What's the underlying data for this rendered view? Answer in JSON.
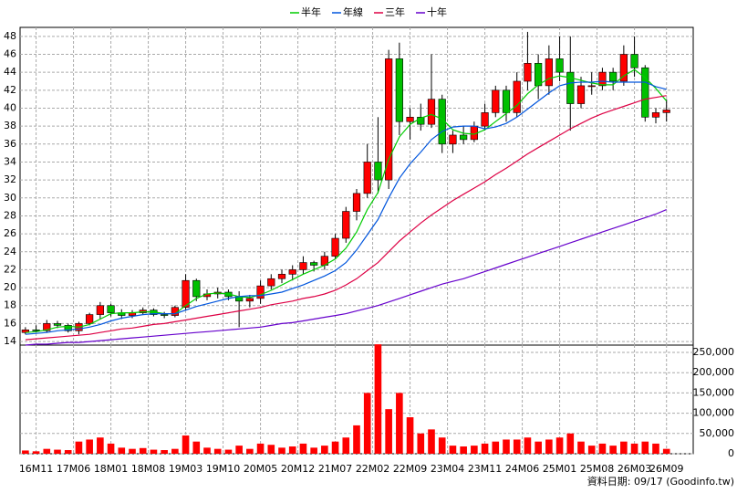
{
  "chart_data": {
    "type": "candlestick",
    "legend": "top",
    "grid": true,
    "up_color": "#ff0000",
    "down_color": "#00c000",
    "volume_color": "#ff0000",
    "footer": "資料日期: 09/17 (Goodinfo.tw)",
    "xlim": [
      -3,
      123
    ],
    "xticks": [
      {
        "value": 0,
        "label": "16M11"
      },
      {
        "value": 7,
        "label": "17M06"
      },
      {
        "value": 14,
        "label": "18M01"
      },
      {
        "value": 21,
        "label": "18M08"
      },
      {
        "value": 28,
        "label": "19M03"
      },
      {
        "value": 35,
        "label": "19M10"
      },
      {
        "value": 42,
        "label": "20M05"
      },
      {
        "value": 49,
        "label": "20M12"
      },
      {
        "value": 56,
        "label": "21M07"
      },
      {
        "value": 63,
        "label": "22M02"
      },
      {
        "value": 70,
        "label": "22M09"
      },
      {
        "value": 77,
        "label": "23M04"
      },
      {
        "value": 84,
        "label": "23M11"
      },
      {
        "value": 91,
        "label": "24M06"
      },
      {
        "value": 98,
        "label": "25M01"
      },
      {
        "value": 105,
        "label": "25M08"
      },
      {
        "value": 112,
        "label": "26M03"
      },
      {
        "value": 118,
        "label": "26M09"
      }
    ],
    "ylim": [
      13.6,
      49
    ],
    "yticks": [
      14,
      16,
      18,
      20,
      22,
      24,
      26,
      28,
      30,
      32,
      34,
      36,
      38,
      40,
      42,
      44,
      46,
      48
    ],
    "volume_ylim": [
      0,
      268000
    ],
    "volume_yticks": [
      0,
      {
        "value": 50000,
        "label": "50,000"
      },
      {
        "value": 100000,
        "label": "100,000"
      },
      {
        "value": 150000,
        "label": "150,000"
      },
      {
        "value": 200000,
        "label": "200,000"
      },
      {
        "value": 250000,
        "label": "250,000"
      }
    ],
    "x": [
      -2,
      0,
      2,
      4,
      6,
      8,
      10,
      12,
      14,
      16,
      18,
      20,
      22,
      24,
      26,
      28,
      30,
      32,
      34,
      36,
      38,
      40,
      42,
      44,
      46,
      48,
      50,
      52,
      54,
      56,
      58,
      60,
      62,
      64,
      66,
      68,
      70,
      72,
      74,
      76,
      78,
      80,
      82,
      84,
      86,
      88,
      90,
      92,
      94,
      96,
      98,
      100,
      102,
      104,
      106,
      108,
      110,
      112,
      114,
      116,
      118
    ],
    "open": [
      15.0,
      15.3,
      15.2,
      16.0,
      15.8,
      15.2,
      16.0,
      17.0,
      18.0,
      17.2,
      16.9,
      17.2,
      17.5,
      17.0,
      16.9,
      17.8,
      20.8,
      19.0,
      19.3,
      19.5,
      19.0,
      18.5,
      18.8,
      20.2,
      21.0,
      21.5,
      22.0,
      22.8,
      22.5,
      23.5,
      25.5,
      28.5,
      30.5,
      34.0,
      32.0,
      45.5,
      38.5,
      39.0,
      38.2,
      41.0,
      36.0,
      37.0,
      36.5,
      38.0,
      39.5,
      42.0,
      39.5,
      43.0,
      45.0,
      42.5,
      45.5,
      44.0,
      40.5,
      42.5,
      42.5,
      44.0,
      43.0,
      46.0,
      44.5,
      39.0,
      39.5
    ],
    "high": [
      15.6,
      15.8,
      16.4,
      16.3,
      16.0,
      16.2,
      17.2,
      18.4,
      18.2,
      17.6,
      17.5,
      17.8,
      17.7,
      17.3,
      18.0,
      21.5,
      21.0,
      19.8,
      20.0,
      19.8,
      19.6,
      19.2,
      20.8,
      21.5,
      22.0,
      22.5,
      23.5,
      23.0,
      24.0,
      26.0,
      29.0,
      31.0,
      36.0,
      39.0,
      46.5,
      47.3,
      40.0,
      40.5,
      46.0,
      41.5,
      37.5,
      38.0,
      38.5,
      40.5,
      42.5,
      42.5,
      44.0,
      48.5,
      46.0,
      47.0,
      48.0,
      48.0,
      43.5,
      44.0,
      44.5,
      44.5,
      47.0,
      48.0,
      44.8,
      40.0,
      41.0
    ],
    "low": [
      14.8,
      15.0,
      15.0,
      15.5,
      15.0,
      14.8,
      15.8,
      16.5,
      16.8,
      16.5,
      16.6,
      17.0,
      16.8,
      16.6,
      16.7,
      17.5,
      18.5,
      18.6,
      18.8,
      18.6,
      15.6,
      17.8,
      18.2,
      19.8,
      20.5,
      20.8,
      21.5,
      21.8,
      22.0,
      23.2,
      25.0,
      27.5,
      30.0,
      30.5,
      31.0,
      37.0,
      36.5,
      37.5,
      37.8,
      35.0,
      35.0,
      36.0,
      36.2,
      37.5,
      39.0,
      38.5,
      39.0,
      42.0,
      41.0,
      41.5,
      43.0,
      37.5,
      40.0,
      41.5,
      42.0,
      42.0,
      42.5,
      43.5,
      38.5,
      38.3,
      38.5
    ],
    "close": [
      15.3,
      15.2,
      16.0,
      15.8,
      15.2,
      16.0,
      17.0,
      18.0,
      17.2,
      16.9,
      17.2,
      17.5,
      17.0,
      16.9,
      17.8,
      20.8,
      19.0,
      19.3,
      19.5,
      19.0,
      18.5,
      18.8,
      20.2,
      21.0,
      21.5,
      22.0,
      22.8,
      22.5,
      23.5,
      25.5,
      28.5,
      30.5,
      34.0,
      32.0,
      45.5,
      38.5,
      39.0,
      38.2,
      41.0,
      36.0,
      37.0,
      36.5,
      38.0,
      39.5,
      42.0,
      39.5,
      43.0,
      45.0,
      42.5,
      45.5,
      44.0,
      40.5,
      42.5,
      42.5,
      44.0,
      43.0,
      46.0,
      44.5,
      39.0,
      39.5,
      39.8
    ],
    "volume": [
      8000,
      6000,
      12000,
      10000,
      9000,
      30000,
      35000,
      40000,
      25000,
      15000,
      12000,
      14000,
      10000,
      9000,
      12000,
      45000,
      30000,
      15000,
      12000,
      10000,
      20000,
      12000,
      25000,
      22000,
      15000,
      18000,
      25000,
      15000,
      20000,
      30000,
      40000,
      70000,
      150000,
      270000,
      110000,
      150000,
      90000,
      50000,
      60000,
      40000,
      20000,
      18000,
      20000,
      25000,
      30000,
      35000,
      35000,
      40000,
      30000,
      35000,
      40000,
      50000,
      30000,
      20000,
      25000,
      20000,
      30000,
      25000,
      30000,
      25000,
      12000
    ],
    "series": [
      {
        "name": "半年",
        "color": "#00cc00",
        "values": [
          15.0,
          15.1,
          15.3,
          15.6,
          15.7,
          15.6,
          15.9,
          16.5,
          17.1,
          17.2,
          17.2,
          17.3,
          17.3,
          17.1,
          17.1,
          18.0,
          18.8,
          19.3,
          19.4,
          19.3,
          19.0,
          18.9,
          19.2,
          19.7,
          20.3,
          20.9,
          21.5,
          22.0,
          22.5,
          23.2,
          24.4,
          26.2,
          28.7,
          30.6,
          34.3,
          36.8,
          38.2,
          38.9,
          39.3,
          38.8,
          37.6,
          37.2,
          37.1,
          37.6,
          38.5,
          39.4,
          40.3,
          41.6,
          42.6,
          43.3,
          43.6,
          43.4,
          43.1,
          42.8,
          42.6,
          42.6,
          43.6,
          44.3,
          43.4,
          42.2,
          40.8
        ]
      },
      {
        "name": "年線",
        "color": "#0055dd",
        "values": [
          14.8,
          14.9,
          15.0,
          15.2,
          15.3,
          15.4,
          15.6,
          15.9,
          16.3,
          16.6,
          16.8,
          17.0,
          17.1,
          17.1,
          17.1,
          17.5,
          17.9,
          18.2,
          18.5,
          18.8,
          19.0,
          19.1,
          19.1,
          19.3,
          19.5,
          19.9,
          20.3,
          20.8,
          21.3,
          21.9,
          22.8,
          24.2,
          25.9,
          27.6,
          30.0,
          32.2,
          33.8,
          35.1,
          36.5,
          37.4,
          37.9,
          38.0,
          38.0,
          37.7,
          37.9,
          38.3,
          39.0,
          39.9,
          40.8,
          41.7,
          42.5,
          42.8,
          42.9,
          42.9,
          43.0,
          42.9,
          42.9,
          42.9,
          42.9,
          42.4,
          42.1
        ]
      },
      {
        "name": "三年",
        "color": "#dd0044",
        "values": [
          14.2,
          14.3,
          14.4,
          14.5,
          14.6,
          14.7,
          14.8,
          15.0,
          15.2,
          15.4,
          15.5,
          15.7,
          15.9,
          16.0,
          16.2,
          16.4,
          16.6,
          16.8,
          17.0,
          17.2,
          17.4,
          17.6,
          17.8,
          18.1,
          18.3,
          18.5,
          18.8,
          19.0,
          19.3,
          19.7,
          20.3,
          21.0,
          21.9,
          22.8,
          24.0,
          25.2,
          26.2,
          27.2,
          28.1,
          28.9,
          29.7,
          30.4,
          31.1,
          31.8,
          32.6,
          33.3,
          34.1,
          34.9,
          35.6,
          36.3,
          37.0,
          37.7,
          38.3,
          38.9,
          39.4,
          39.8,
          40.2,
          40.6,
          41.0,
          41.2,
          41.4
        ]
      },
      {
        "name": "十年",
        "color": "#6600cc",
        "values": [
          13.6,
          13.7,
          13.7,
          13.8,
          13.9,
          13.9,
          14.0,
          14.1,
          14.2,
          14.3,
          14.4,
          14.5,
          14.6,
          14.7,
          14.8,
          14.9,
          15.0,
          15.1,
          15.2,
          15.3,
          15.4,
          15.5,
          15.6,
          15.8,
          16.0,
          16.1,
          16.3,
          16.5,
          16.7,
          16.9,
          17.1,
          17.4,
          17.7,
          18.0,
          18.4,
          18.8,
          19.2,
          19.6,
          20.0,
          20.4,
          20.7,
          21.0,
          21.4,
          21.8,
          22.2,
          22.6,
          23.0,
          23.4,
          23.8,
          24.2,
          24.6,
          25.0,
          25.4,
          25.8,
          26.2,
          26.6,
          27.0,
          27.4,
          27.8,
          28.2,
          28.7
        ]
      }
    ]
  }
}
